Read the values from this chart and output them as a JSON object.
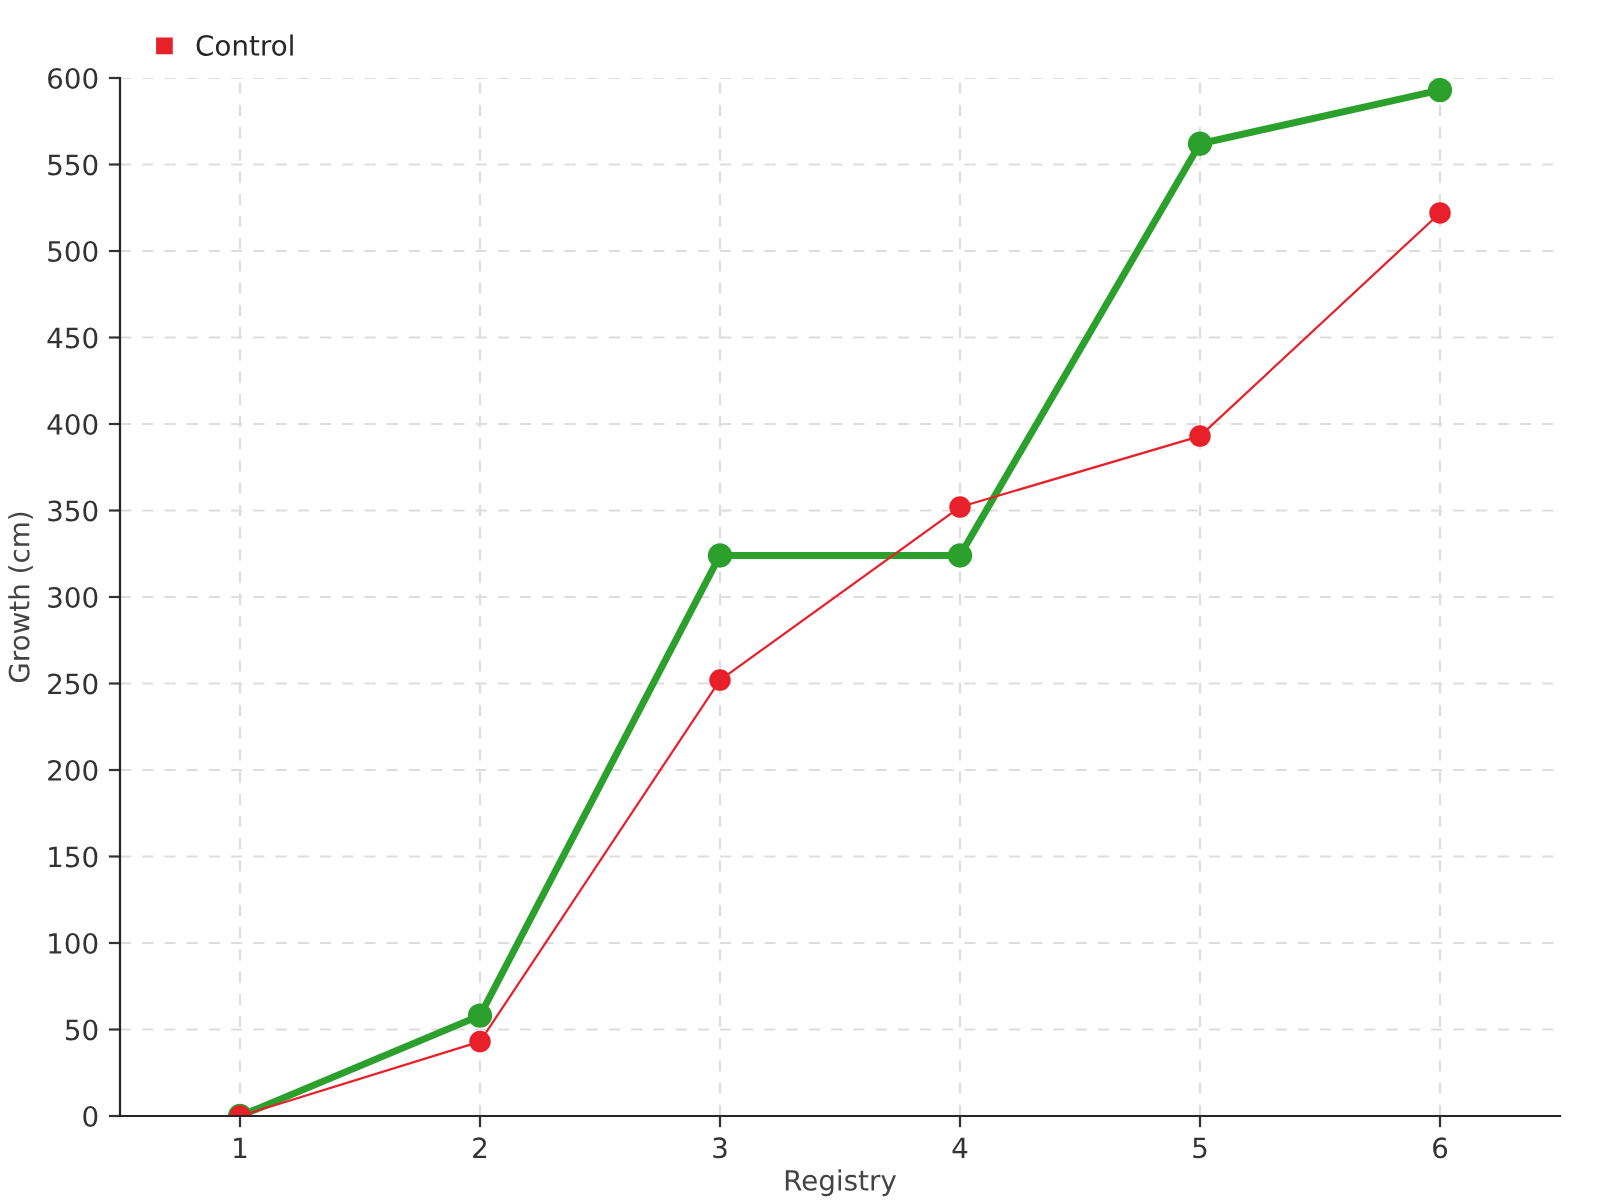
{
  "chart_data": {
    "type": "line",
    "xlabel": "Registry",
    "ylabel": "Growth (cm)",
    "x": [
      1,
      2,
      3,
      4,
      5,
      6
    ],
    "series": [
      {
        "color": "#2ca02c",
        "values": [
          0,
          58,
          324,
          324,
          562,
          593
        ]
      },
      {
        "name": "Control",
        "color": "#e8202a",
        "values": [
          0,
          43,
          252,
          352,
          393,
          522
        ]
      }
    ],
    "xlim": [
      0.5,
      6.5
    ],
    "xticks": [
      1,
      2,
      3,
      4,
      5,
      6
    ],
    "ylim": [
      0,
      600
    ],
    "yticks": [
      0,
      50,
      100,
      150,
      200,
      250,
      300,
      350,
      400,
      450,
      500,
      550,
      600
    ],
    "grid": true,
    "legend": "top left",
    "marker": "circle"
  }
}
